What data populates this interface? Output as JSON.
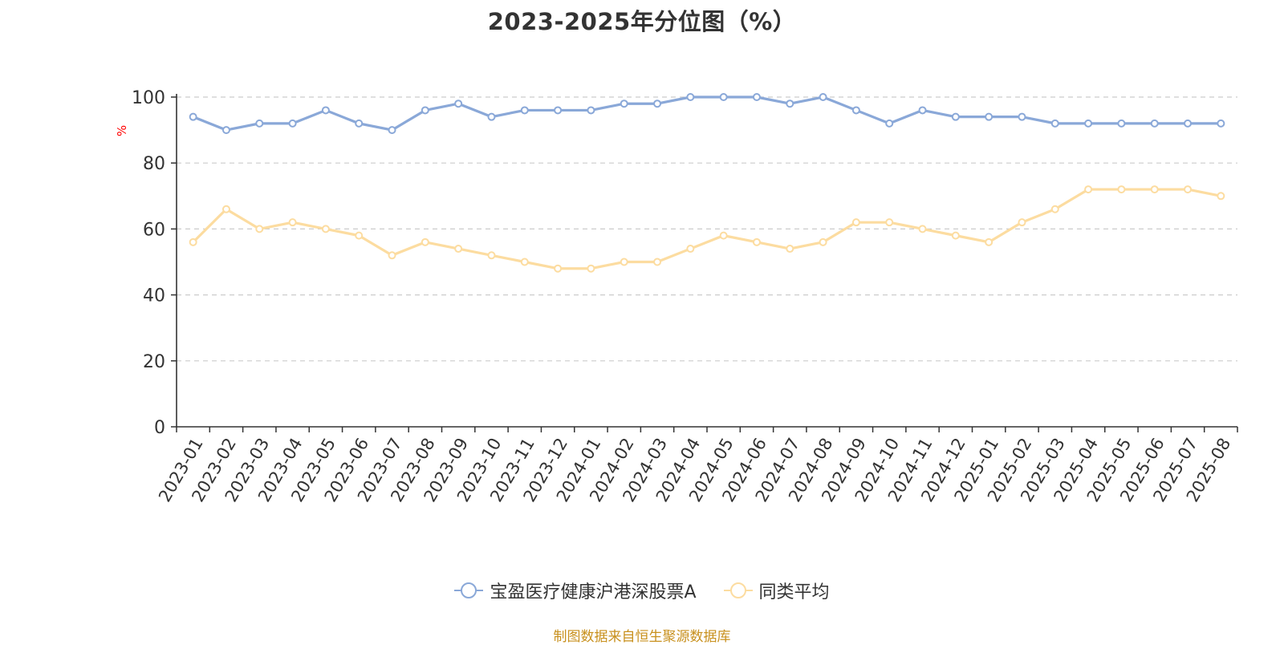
{
  "title": "2023-2025年分位图（%）",
  "source_note": "制图数据来自恒生聚源数据库",
  "colors": {
    "series_1": "#8aa8d8",
    "series_2": "#fcdca0",
    "grid": "#cccccc",
    "axis": "#333333",
    "ylabel": "#ff0000"
  },
  "legend_icon": "circle-line-marker",
  "chart_data": {
    "type": "line",
    "title": "2023-2025年分位图（%）",
    "xlabel": "",
    "ylabel": "%",
    "ylim": [
      0,
      100
    ],
    "yticks": [
      0,
      20,
      40,
      60,
      80,
      100
    ],
    "grid": true,
    "legend_position": "bottom-center",
    "categories": [
      "2023-01",
      "2023-02",
      "2023-03",
      "2023-04",
      "2023-05",
      "2023-06",
      "2023-07",
      "2023-08",
      "2023-09",
      "2023-10",
      "2023-11",
      "2023-12",
      "2024-01",
      "2024-02",
      "2024-03",
      "2024-04",
      "2024-05",
      "2024-06",
      "2024-07",
      "2024-08",
      "2024-09",
      "2024-10",
      "2024-11",
      "2024-12",
      "2025-01",
      "2025-02",
      "2025-03",
      "2025-04",
      "2025-05",
      "2025-06",
      "2025-07",
      "2025-08"
    ],
    "series": [
      {
        "name": "宝盈医疗健康沪港深股票A",
        "color": "#8aa8d8",
        "values": [
          94,
          90,
          92,
          92,
          96,
          92,
          90,
          96,
          98,
          94,
          96,
          96,
          96,
          98,
          98,
          100,
          100,
          100,
          98,
          100,
          96,
          92,
          96,
          94,
          94,
          94,
          92,
          92,
          92,
          92,
          92,
          92
        ]
      },
      {
        "name": "同类平均",
        "color": "#fcdca0",
        "values": [
          56,
          66,
          60,
          62,
          60,
          58,
          52,
          56,
          54,
          52,
          50,
          48,
          48,
          50,
          50,
          54,
          58,
          56,
          54,
          56,
          62,
          62,
          60,
          58,
          56,
          62,
          66,
          72,
          72,
          72,
          72,
          70
        ]
      }
    ]
  }
}
